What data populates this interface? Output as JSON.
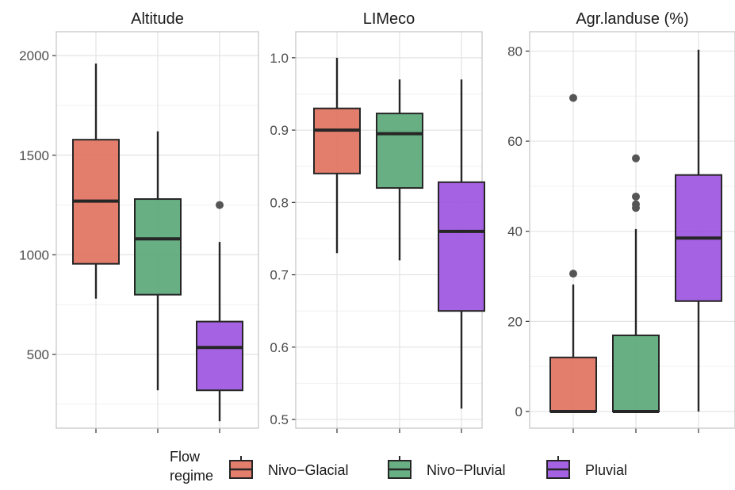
{
  "chart_data": [
    {
      "type": "box",
      "title": "Altitude",
      "yticks": [
        500,
        1000,
        1500,
        2000
      ],
      "ylim": [
        130,
        2120
      ],
      "categories": [
        "Nivo−Glacial",
        "Nivo−Pluvial",
        "Pluvial"
      ],
      "boxes": [
        {
          "group": "Nivo−Glacial",
          "min": 780,
          "q1": 955,
          "median": 1270,
          "q3": 1578,
          "max": 1960,
          "outliers": []
        },
        {
          "group": "Nivo−Pluvial",
          "min": 320,
          "q1": 800,
          "median": 1080,
          "q3": 1280,
          "max": 1620,
          "outliers": []
        },
        {
          "group": "Pluvial",
          "min": 165,
          "q1": 320,
          "median": 535,
          "q3": 665,
          "max": 1065,
          "outliers": [
            1250
          ]
        }
      ]
    },
    {
      "type": "box",
      "title": "LIMeco",
      "yticks": [
        "0.5",
        "0.6",
        "0.7",
        "0.8",
        "0.9",
        "1.0"
      ],
      "ylim": [
        0.488,
        1.036
      ],
      "categories": [
        "Nivo−Glacial",
        "Nivo−Pluvial",
        "Pluvial"
      ],
      "boxes": [
        {
          "group": "Nivo−Glacial",
          "min": 0.73,
          "q1": 0.84,
          "median": 0.9,
          "q3": 0.93,
          "max": 1.0,
          "outliers": []
        },
        {
          "group": "Nivo−Pluvial",
          "min": 0.72,
          "q1": 0.82,
          "median": 0.895,
          "q3": 0.923,
          "max": 0.97,
          "outliers": []
        },
        {
          "group": "Pluvial",
          "min": 0.515,
          "q1": 0.65,
          "median": 0.76,
          "q3": 0.828,
          "max": 0.97,
          "outliers": []
        }
      ]
    },
    {
      "type": "box",
      "title": "Agr.landuse (%)",
      "yticks": [
        0,
        20,
        40,
        60,
        80
      ],
      "ylim": [
        -3.7,
        84.3
      ],
      "categories": [
        "Nivo−Glacial",
        "Nivo−Pluvial",
        "Pluvial"
      ],
      "boxes": [
        {
          "group": "Nivo−Glacial",
          "min": 0,
          "q1": 0,
          "median": 0,
          "q3": 12,
          "max": 28.2,
          "outliers": [
            30.6,
            69.6
          ]
        },
        {
          "group": "Nivo−Pluvial",
          "min": 0,
          "q1": 0,
          "median": 0,
          "q3": 16.9,
          "max": 40.5,
          "outliers": [
            45.2,
            46,
            47.7,
            56.2
          ]
        },
        {
          "group": "Pluvial",
          "min": 0,
          "q1": 24.5,
          "median": 38.5,
          "q3": 52.5,
          "max": 80.3,
          "outliers": []
        }
      ]
    }
  ],
  "legend": {
    "title_line1": "Flow",
    "title_line2": "regime",
    "items": [
      {
        "label": "Nivo−Glacial",
        "color": "#E0705C"
      },
      {
        "label": "Nivo−Pluvial",
        "color": "#58A677"
      },
      {
        "label": "Pluvial",
        "color": "#9B51E0"
      }
    ]
  }
}
